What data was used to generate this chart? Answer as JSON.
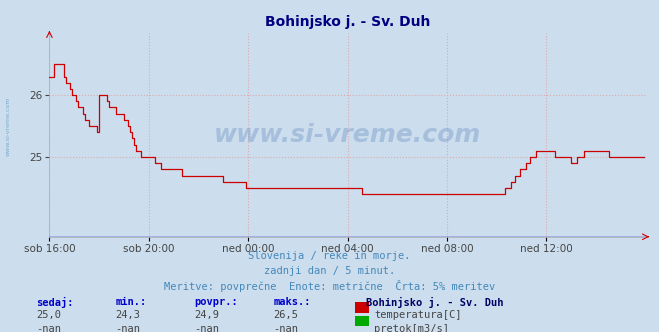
{
  "title": "Bohinjsko j. - Sv. Duh",
  "title_color": "#000080",
  "plot_bg_color": "#ccdded",
  "fig_bg_color": "#ccdded",
  "ylabel": "",
  "ylim_min": 23.7,
  "ylim_max": 27.0,
  "yticks": [
    25,
    26
  ],
  "xtick_labels": [
    "sob 16:00",
    "sob 20:00",
    "ned 00:00",
    "ned 04:00",
    "ned 08:00",
    "ned 12:00"
  ],
  "subtitle1": "Slovenija / reke in morje.",
  "subtitle2": "zadnji dan / 5 minut.",
  "subtitle3": "Meritve: povprečne  Enote: metrične  Črta: 5% meritev",
  "subtitle_color": "#4488bb",
  "watermark": "www.si-vreme.com",
  "watermark_color": "#3366aa",
  "watermark_alpha": 0.25,
  "legend_station": "Bohinjsko j. - Sv. Duh",
  "legend_temp_label": "temperatura[C]",
  "legend_flow_label": "pretok[m3/s]",
  "legend_temp_color": "#cc0000",
  "legend_flow_color": "#00aa00",
  "stat_headers": [
    "sedaj:",
    "min.:",
    "povpr.:",
    "maks.:"
  ],
  "stat_temp": [
    "25,0",
    "24,3",
    "24,9",
    "26,5"
  ],
  "stat_flow": [
    "-nan",
    "-nan",
    "-nan",
    "-nan"
  ],
  "grid_color": "#ddaaaa",
  "line_color": "#cc0000",
  "blue_line_color": "#0000cc",
  "left_label": "www.si-vreme.com",
  "temp_data": [
    26.3,
    26.3,
    26.5,
    26.5,
    26.5,
    26.5,
    26.5,
    26.3,
    26.2,
    26.2,
    26.1,
    26.0,
    26.0,
    25.9,
    25.8,
    25.8,
    25.7,
    25.6,
    25.6,
    25.5,
    25.5,
    25.5,
    25.5,
    25.4,
    26.0,
    26.0,
    26.0,
    26.0,
    25.9,
    25.8,
    25.8,
    25.8,
    25.7,
    25.7,
    25.7,
    25.7,
    25.6,
    25.6,
    25.5,
    25.4,
    25.3,
    25.2,
    25.1,
    25.1,
    25.0,
    25.0,
    25.0,
    25.0,
    25.0,
    25.0,
    25.0,
    24.9,
    24.9,
    24.9,
    24.8,
    24.8,
    24.8,
    24.8,
    24.8,
    24.8,
    24.8,
    24.8,
    24.8,
    24.8,
    24.7,
    24.7,
    24.7,
    24.7,
    24.7,
    24.7,
    24.7,
    24.7,
    24.7,
    24.7,
    24.7,
    24.7,
    24.7,
    24.7,
    24.7,
    24.7,
    24.7,
    24.7,
    24.7,
    24.7,
    24.6,
    24.6,
    24.6,
    24.6,
    24.6,
    24.6,
    24.6,
    24.6,
    24.6,
    24.6,
    24.6,
    24.5,
    24.5,
    24.5,
    24.5,
    24.5,
    24.5,
    24.5,
    24.5,
    24.5,
    24.5,
    24.5,
    24.5,
    24.5,
    24.5,
    24.5,
    24.5,
    24.5,
    24.5,
    24.5,
    24.5,
    24.5,
    24.5,
    24.5,
    24.5,
    24.5,
    24.5,
    24.5,
    24.5,
    24.5,
    24.5,
    24.5,
    24.5,
    24.5,
    24.5,
    24.5,
    24.5,
    24.5,
    24.5,
    24.5,
    24.5,
    24.5,
    24.5,
    24.5,
    24.5,
    24.5,
    24.5,
    24.5,
    24.5,
    24.5,
    24.5,
    24.5,
    24.5,
    24.5,
    24.5,
    24.5,
    24.5,
    24.4,
    24.4,
    24.4,
    24.4,
    24.4,
    24.4,
    24.4,
    24.4,
    24.4,
    24.4,
    24.4,
    24.4,
    24.4,
    24.4,
    24.4,
    24.4,
    24.4,
    24.4,
    24.4,
    24.4,
    24.4,
    24.4,
    24.4,
    24.4,
    24.4,
    24.4,
    24.4,
    24.4,
    24.4,
    24.4,
    24.4,
    24.4,
    24.4,
    24.4,
    24.4,
    24.4,
    24.4,
    24.4,
    24.4,
    24.4,
    24.4,
    24.4,
    24.4,
    24.4,
    24.4,
    24.4,
    24.4,
    24.4,
    24.4,
    24.4,
    24.4,
    24.4,
    24.4,
    24.4,
    24.4,
    24.4,
    24.4,
    24.4,
    24.4,
    24.4,
    24.4,
    24.4,
    24.4,
    24.4,
    24.4,
    24.4,
    24.4,
    24.4,
    24.4,
    24.5,
    24.5,
    24.5,
    24.6,
    24.6,
    24.7,
    24.7,
    24.8,
    24.8,
    24.8,
    24.9,
    24.9,
    25.0,
    25.0,
    25.0,
    25.1,
    25.1,
    25.1,
    25.1,
    25.1,
    25.1,
    25.1,
    25.1,
    25.1,
    25.0,
    25.0,
    25.0,
    25.0,
    25.0,
    25.0,
    25.0,
    25.0,
    24.9,
    24.9,
    24.9,
    25.0,
    25.0,
    25.0,
    25.1,
    25.1,
    25.1,
    25.1,
    25.1,
    25.1,
    25.1,
    25.1,
    25.1,
    25.1,
    25.1,
    25.1,
    25.0,
    25.0,
    25.0,
    25.0,
    25.0,
    25.0,
    25.0,
    25.0,
    25.0,
    25.0,
    25.0,
    25.0,
    25.0,
    25.0,
    25.0,
    25.0,
    25.0,
    25.0
  ]
}
